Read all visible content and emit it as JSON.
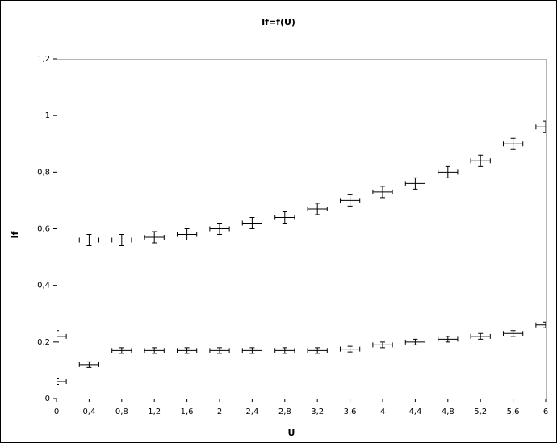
{
  "chart_data": {
    "type": "errorbar-scatter",
    "title": "If=f(U)",
    "x_label": "U",
    "y_label": "If",
    "xlim": [
      0,
      6
    ],
    "ylim": [
      0,
      1.2
    ],
    "xticks": [
      0,
      {
        "value": 0.4,
        "label": "0,4"
      },
      {
        "value": 0.8,
        "label": "0,8"
      },
      {
        "value": 1.2,
        "label": "1,2"
      },
      {
        "value": 1.6,
        "label": "1,6"
      },
      2,
      {
        "value": 2.4,
        "label": "2,4"
      },
      {
        "value": 2.8,
        "label": "2,8"
      },
      {
        "value": 3.2,
        "label": "3,2"
      },
      {
        "value": 3.6,
        "label": "3,6"
      },
      4,
      {
        "value": 4.4,
        "label": "4,4"
      },
      {
        "value": 4.8,
        "label": "4,8"
      },
      {
        "value": 5.2,
        "label": "5,2"
      },
      {
        "value": 5.6,
        "label": "5,6"
      },
      6
    ],
    "yticks": [
      0,
      {
        "value": 0.2,
        "label": "0,2"
      },
      {
        "value": 0.4,
        "label": "0,4"
      },
      {
        "value": 0.6,
        "label": "0,6"
      },
      {
        "value": 0.8,
        "label": "0,8"
      },
      1,
      {
        "value": 1.2,
        "label": "1,2"
      }
    ],
    "series": [
      {
        "color": "#000000",
        "xerr": 0.12,
        "yerr": 0.02,
        "x": [
          0,
          0.4,
          0.8,
          1.2,
          1.6,
          2,
          2.4,
          2.8,
          3.2,
          3.6,
          4,
          4.4,
          4.8,
          5.2,
          5.6,
          6
        ],
        "values": [
          0.22,
          0.56,
          0.56,
          0.57,
          0.58,
          0.6,
          0.62,
          0.64,
          0.67,
          0.7,
          0.73,
          0.76,
          0.8,
          0.84,
          0.9,
          0.96
        ]
      },
      {
        "color": "#000000",
        "xerr": 0.12,
        "yerr": 0.01,
        "x": [
          0,
          0.4,
          0.8,
          1.2,
          1.6,
          2,
          2.4,
          2.8,
          3.2,
          3.6,
          4,
          4.4,
          4.8,
          5.2,
          5.6,
          6
        ],
        "values": [
          0.06,
          0.12,
          0.17,
          0.17,
          0.17,
          0.17,
          0.17,
          0.17,
          0.17,
          0.175,
          0.19,
          0.2,
          0.21,
          0.22,
          0.23,
          0.26
        ]
      }
    ]
  }
}
